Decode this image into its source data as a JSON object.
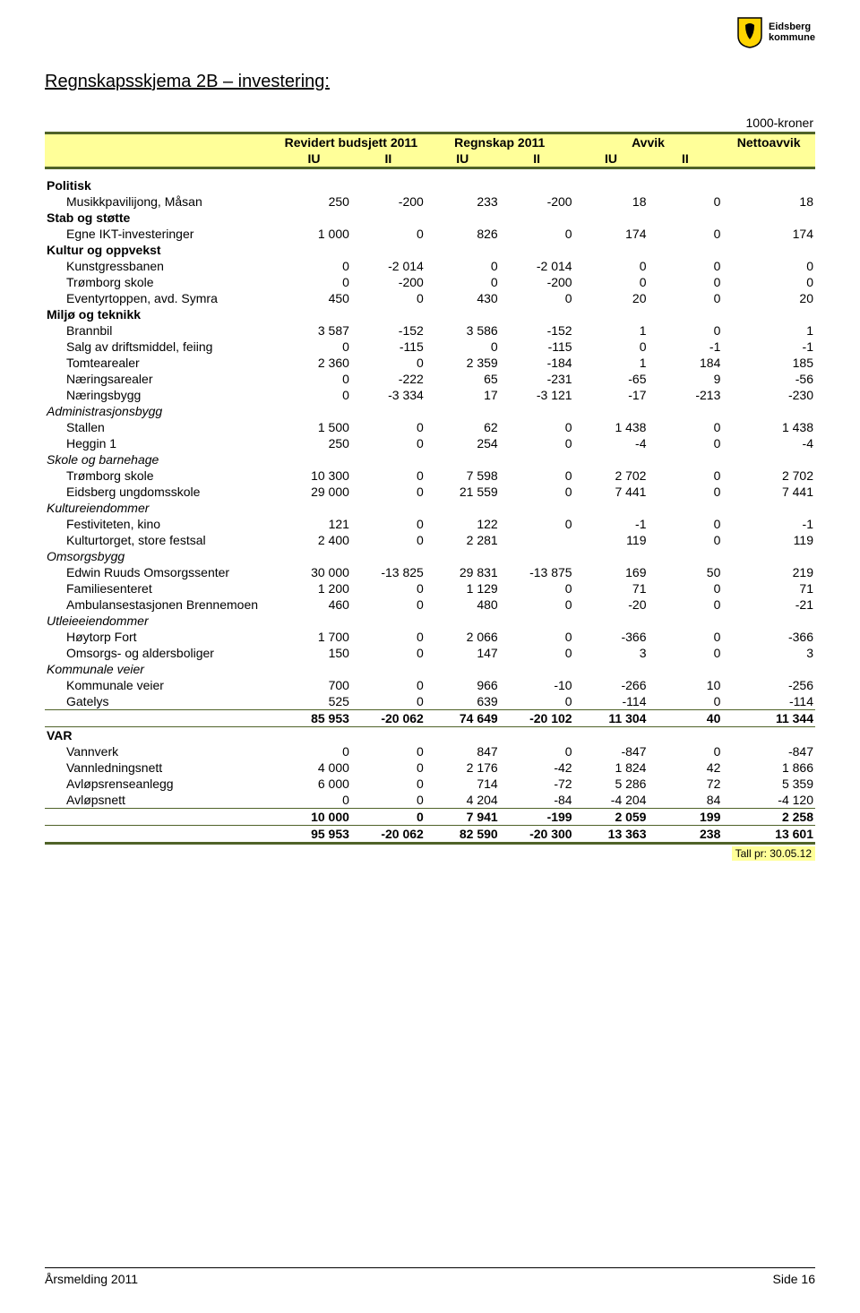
{
  "logo": {
    "line1": "Eidsberg",
    "line2": "kommune",
    "shield_fill": "#ffd400",
    "shield_stroke": "#000000",
    "emblem_fill": "#000000"
  },
  "title": "Regnskapsskjema 2B – investering:",
  "unit_label": "1000-kroner",
  "header": {
    "group1": "Revidert budsjett 2011",
    "group2": "Regnskap 2011",
    "group3": "Avvik",
    "group4": "Nettoavvik",
    "sub_IU": "IU",
    "sub_II": "II"
  },
  "columns": [
    "c1",
    "c2",
    "c3",
    "c4",
    "c5",
    "c6",
    "c7"
  ],
  "rows": [
    {
      "type": "section",
      "label": "Politisk"
    },
    {
      "type": "data",
      "indent": 1,
      "label": "Musikkpavilijong, Måsan",
      "v": [
        "250",
        "-200",
        "233",
        "-200",
        "18",
        "0",
        "18"
      ]
    },
    {
      "type": "section",
      "label": "Stab og støtte"
    },
    {
      "type": "data",
      "indent": 1,
      "label": "Egne IKT-investeringer",
      "v": [
        "1 000",
        "0",
        "826",
        "0",
        "174",
        "0",
        "174"
      ]
    },
    {
      "type": "section",
      "label": "Kultur og oppvekst"
    },
    {
      "type": "data",
      "indent": 1,
      "label": "Kunstgressbanen",
      "v": [
        "0",
        "-2 014",
        "0",
        "-2 014",
        "0",
        "0",
        "0"
      ]
    },
    {
      "type": "data",
      "indent": 1,
      "label": "Trømborg skole",
      "v": [
        "0",
        "-200",
        "0",
        "-200",
        "0",
        "0",
        "0"
      ]
    },
    {
      "type": "data",
      "indent": 1,
      "label": "Eventyrtoppen, avd. Symra",
      "v": [
        "450",
        "0",
        "430",
        "0",
        "20",
        "0",
        "20"
      ]
    },
    {
      "type": "section",
      "label": "Miljø og teknikk"
    },
    {
      "type": "data",
      "indent": 1,
      "label": "Brannbil",
      "v": [
        "3 587",
        "-152",
        "3 586",
        "-152",
        "1",
        "0",
        "1"
      ]
    },
    {
      "type": "data",
      "indent": 1,
      "label": "Salg av driftsmiddel, feiing",
      "v": [
        "0",
        "-115",
        "0",
        "-115",
        "0",
        "-1",
        "-1"
      ]
    },
    {
      "type": "data",
      "indent": 1,
      "label": "Tomtearealer",
      "v": [
        "2 360",
        "0",
        "2 359",
        "-184",
        "1",
        "184",
        "185"
      ]
    },
    {
      "type": "data",
      "indent": 1,
      "label": "Næringsarealer",
      "v": [
        "0",
        "-222",
        "65",
        "-231",
        "-65",
        "9",
        "-56"
      ]
    },
    {
      "type": "data",
      "indent": 1,
      "label": "Næringsbygg",
      "v": [
        "0",
        "-3 334",
        "17",
        "-3 121",
        "-17",
        "-213",
        "-230"
      ]
    },
    {
      "type": "section-italic",
      "label": "Administrasjonsbygg"
    },
    {
      "type": "data",
      "indent": 1,
      "label": "Stallen",
      "v": [
        "1 500",
        "0",
        "62",
        "0",
        "1 438",
        "0",
        "1 438"
      ]
    },
    {
      "type": "data",
      "indent": 1,
      "label": "Heggin 1",
      "v": [
        "250",
        "0",
        "254",
        "0",
        "-4",
        "0",
        "-4"
      ]
    },
    {
      "type": "section-italic",
      "label": "Skole og barnehage"
    },
    {
      "type": "data",
      "indent": 1,
      "label": "Trømborg skole",
      "v": [
        "10 300",
        "0",
        "7 598",
        "0",
        "2 702",
        "0",
        "2 702"
      ]
    },
    {
      "type": "data",
      "indent": 1,
      "label": "Eidsberg ungdomsskole",
      "v": [
        "29 000",
        "0",
        "21 559",
        "0",
        "7 441",
        "0",
        "7 441"
      ]
    },
    {
      "type": "section-italic",
      "label": "Kultureiendommer"
    },
    {
      "type": "data",
      "indent": 1,
      "label": "Festiviteten, kino",
      "v": [
        "121",
        "0",
        "122",
        "0",
        "-1",
        "0",
        "-1"
      ]
    },
    {
      "type": "data",
      "indent": 1,
      "label": "Kulturtorget, store festsal",
      "v": [
        "2 400",
        "0",
        "2 281",
        "",
        "119",
        "0",
        "119"
      ]
    },
    {
      "type": "section-italic",
      "label": "Omsorgsbygg"
    },
    {
      "type": "data",
      "indent": 1,
      "label": "Edwin Ruuds Omsorgssenter",
      "v": [
        "30 000",
        "-13 825",
        "29 831",
        "-13 875",
        "169",
        "50",
        "219"
      ]
    },
    {
      "type": "data",
      "indent": 1,
      "label": "Familiesenteret",
      "v": [
        "1 200",
        "0",
        "1 129",
        "0",
        "71",
        "0",
        "71"
      ]
    },
    {
      "type": "data",
      "indent": 1,
      "label": "Ambulansestasjonen Brennemoen",
      "v": [
        "460",
        "0",
        "480",
        "0",
        "-20",
        "0",
        "-21"
      ]
    },
    {
      "type": "section-italic",
      "label": "Utleieeiendommer"
    },
    {
      "type": "data",
      "indent": 1,
      "label": "Høytorp Fort",
      "v": [
        "1 700",
        "0",
        "2 066",
        "0",
        "-366",
        "0",
        "-366"
      ]
    },
    {
      "type": "data",
      "indent": 1,
      "label": "Omsorgs- og aldersboliger",
      "v": [
        "150",
        "0",
        "147",
        "0",
        "3",
        "0",
        "3"
      ]
    },
    {
      "type": "section-italic",
      "label": "Kommunale veier"
    },
    {
      "type": "data",
      "indent": 1,
      "label": "Kommunale veier",
      "v": [
        "700",
        "0",
        "966",
        "-10",
        "-266",
        "10",
        "-256"
      ]
    },
    {
      "type": "data",
      "indent": 1,
      "label": "Gatelys",
      "v": [
        "525",
        "0",
        "639",
        "0",
        "-114",
        "0",
        "-114"
      ]
    },
    {
      "type": "subtotal",
      "label": "",
      "v": [
        "85 953",
        "-20 062",
        "74 649",
        "-20 102",
        "11 304",
        "40",
        "11 344"
      ]
    },
    {
      "type": "section",
      "label": "VAR"
    },
    {
      "type": "data",
      "indent": 1,
      "label": "Vannverk",
      "v": [
        "0",
        "0",
        "847",
        "0",
        "-847",
        "0",
        "-847"
      ]
    },
    {
      "type": "data",
      "indent": 1,
      "label": "Vannledningsnett",
      "v": [
        "4 000",
        "0",
        "2 176",
        "-42",
        "1 824",
        "42",
        "1 866"
      ]
    },
    {
      "type": "data",
      "indent": 1,
      "label": "Avløpsrenseanlegg",
      "v": [
        "6 000",
        "0",
        "714",
        "-72",
        "5 286",
        "72",
        "5 359"
      ]
    },
    {
      "type": "data",
      "indent": 1,
      "label": "Avløpsnett",
      "v": [
        "0",
        "0",
        "4 204",
        "-84",
        "-4 204",
        "84",
        "-4 120"
      ]
    },
    {
      "type": "subtotal",
      "label": "",
      "v": [
        "10 000",
        "0",
        "7 941",
        "-199",
        "2 059",
        "199",
        "2 258"
      ]
    },
    {
      "type": "grand",
      "label": "",
      "v": [
        "95 953",
        "-20 062",
        "82 590",
        "-20 300",
        "13 363",
        "238",
        "13 601"
      ]
    }
  ],
  "tall_note": "Tall pr: 30.05.12",
  "footer": {
    "left": "Årsmelding 2011",
    "right": "Side 16"
  },
  "colors": {
    "header_bg": "#ffff99",
    "border": "#4f6228",
    "text": "#000000",
    "page_bg": "#ffffff"
  }
}
